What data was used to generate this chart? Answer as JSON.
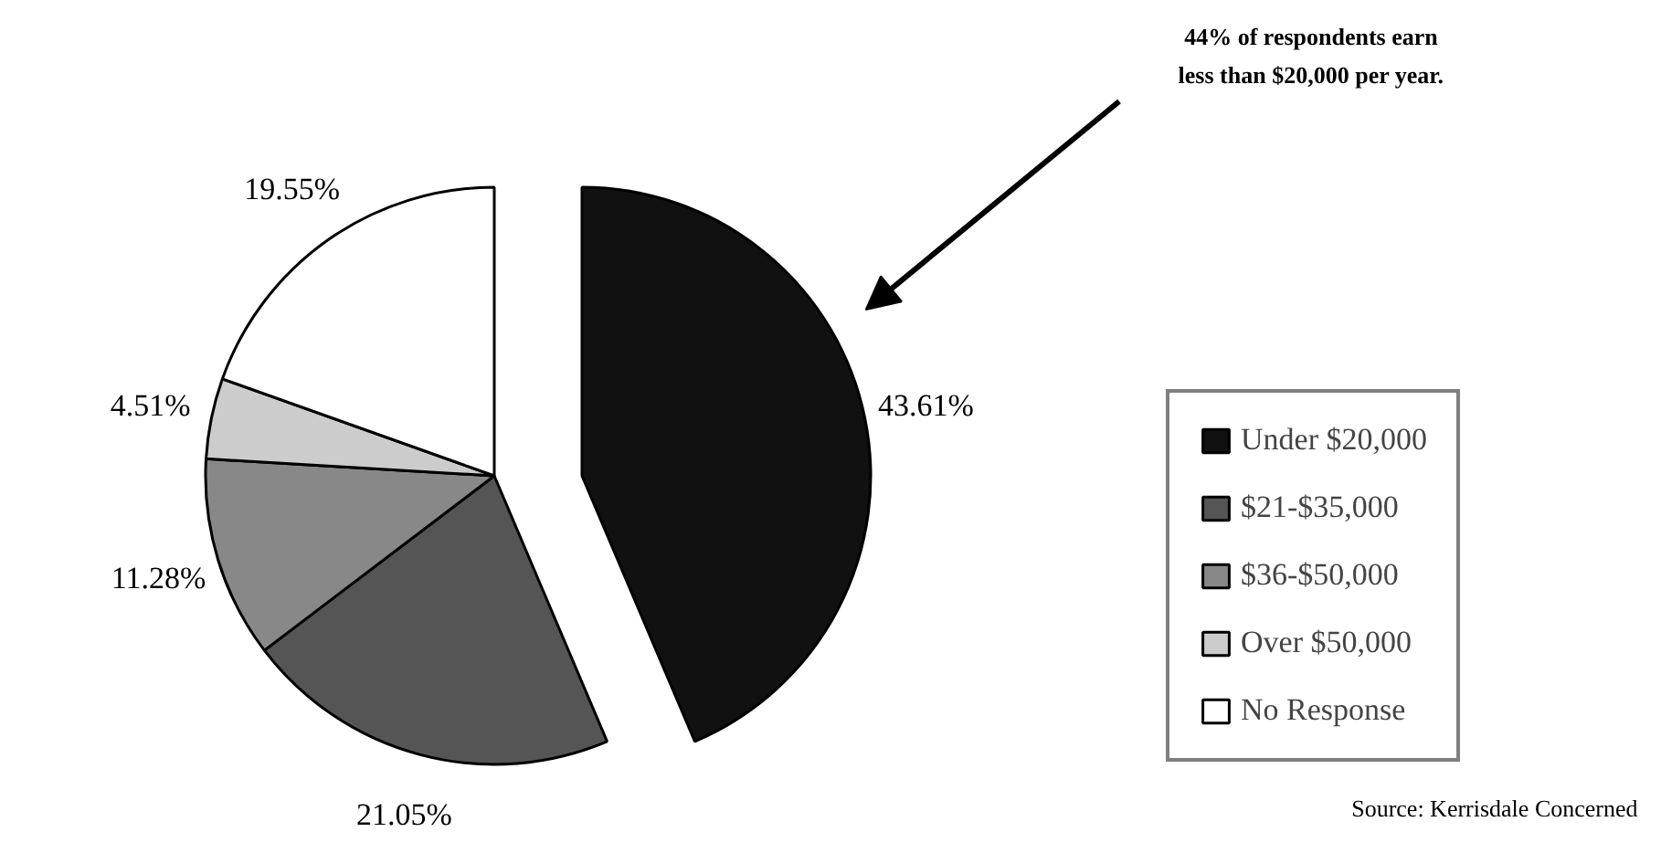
{
  "chart_data": {
    "type": "pie",
    "categories": [
      "Under $20,000",
      "$21-$35,000",
      "$36-$50,000",
      "Over $50,000",
      "No Response"
    ],
    "values": [
      43.61,
      21.05,
      11.28,
      4.51,
      19.55
    ],
    "colors": [
      "#111111",
      "#555555",
      "#888888",
      "#cccccc",
      "#ffffff"
    ],
    "value_labels": [
      "43.61%",
      "21.05%",
      "11.28%",
      "4.51%",
      "19.55%"
    ],
    "legend": "right",
    "annotations": [
      {
        "text": "44% of respondents earn\nless than $20,000 per year.",
        "x": "Under $20,000"
      },
      "Source:  Kerrisdale Concerned"
    ]
  }
}
